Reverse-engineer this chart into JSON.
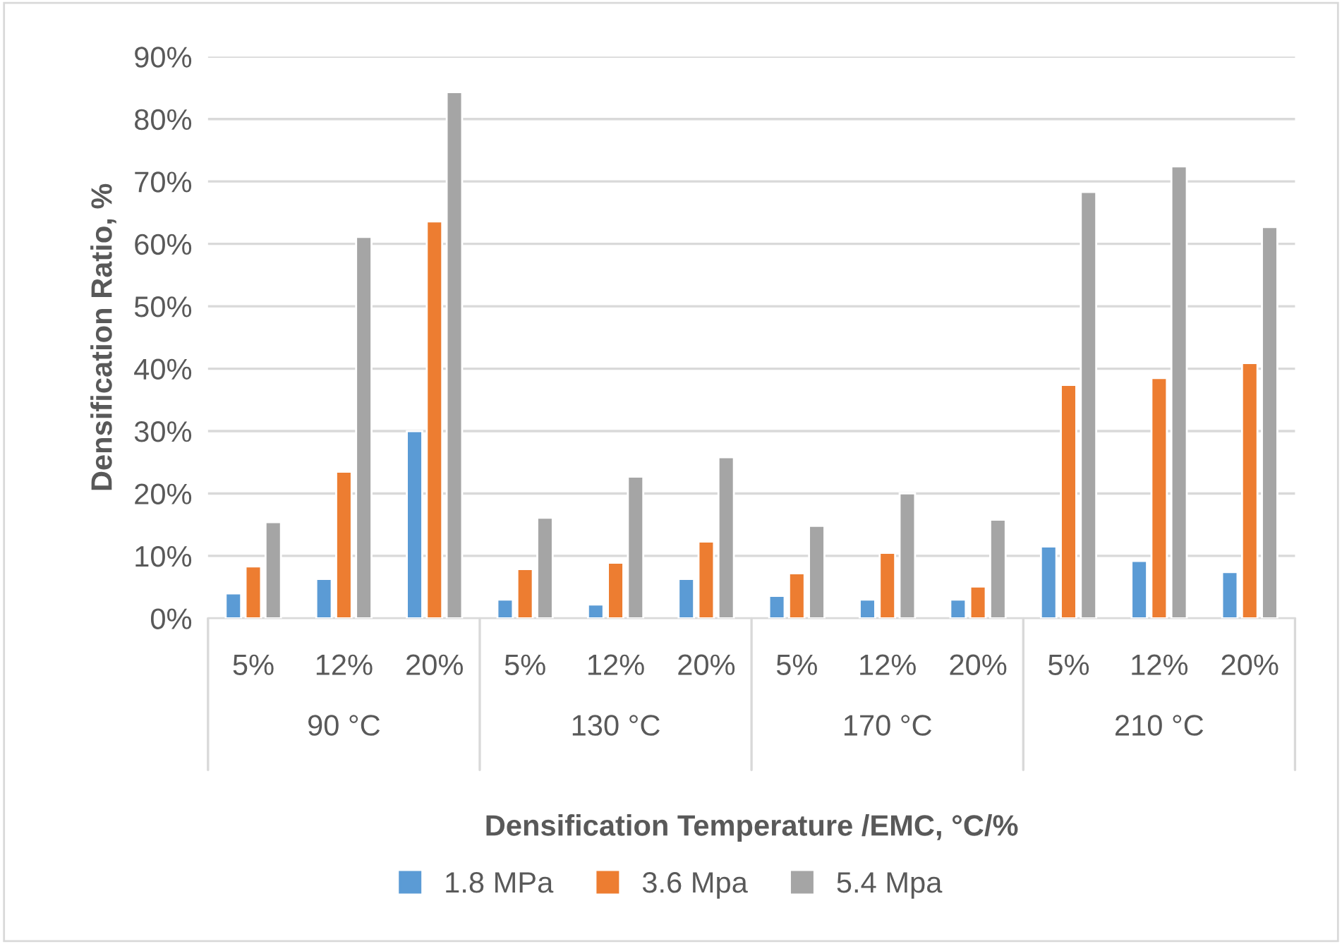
{
  "chart_data": {
    "type": "bar",
    "xlabel": "Densification Temperature /EMC, °C/%",
    "ylabel": "Densification Ratio, %",
    "categories": [
      "5%",
      "12%",
      "20%",
      "5%",
      "12%",
      "20%",
      "5%",
      "12%",
      "20%",
      "5%",
      "12%",
      "20%"
    ],
    "annotations": [
      "90 °C",
      "130 °C",
      "170 °C",
      "210 °C"
    ],
    "series": [
      {
        "name": "1.8 MPa",
        "color": "#5b9bd5",
        "values": [
          4.0,
          6.3,
          30.0,
          3.0,
          2.2,
          6.3,
          3.6,
          3.0,
          3.0,
          11.5,
          9.2,
          7.4
        ]
      },
      {
        "name": "3.6 Mpa",
        "color": "#ed7d31",
        "values": [
          8.3,
          23.5,
          63.6,
          7.9,
          8.9,
          12.3,
          7.2,
          10.5,
          5.1,
          37.4,
          38.5,
          40.9
        ]
      },
      {
        "name": "5.4 Mpa",
        "color": "#a5a5a5",
        "values": [
          15.4,
          61.1,
          84.3,
          16.1,
          22.7,
          25.8,
          14.8,
          20.0,
          15.8,
          68.3,
          72.4,
          62.7
        ]
      }
    ],
    "ylim": [
      0,
      90
    ],
    "yticks": [
      {
        "value": 0,
        "label": "0%"
      },
      {
        "value": 10,
        "label": "10%"
      },
      {
        "value": 20,
        "label": "20%"
      },
      {
        "value": 30,
        "label": "30%"
      },
      {
        "value": 40,
        "label": "40%"
      },
      {
        "value": 50,
        "label": "50%"
      },
      {
        "value": 60,
        "label": "60%"
      },
      {
        "value": 70,
        "label": "70%"
      },
      {
        "value": 80,
        "label": "80%"
      },
      {
        "value": 90,
        "label": "90%"
      }
    ],
    "grid": "y",
    "legend": "bottom"
  }
}
